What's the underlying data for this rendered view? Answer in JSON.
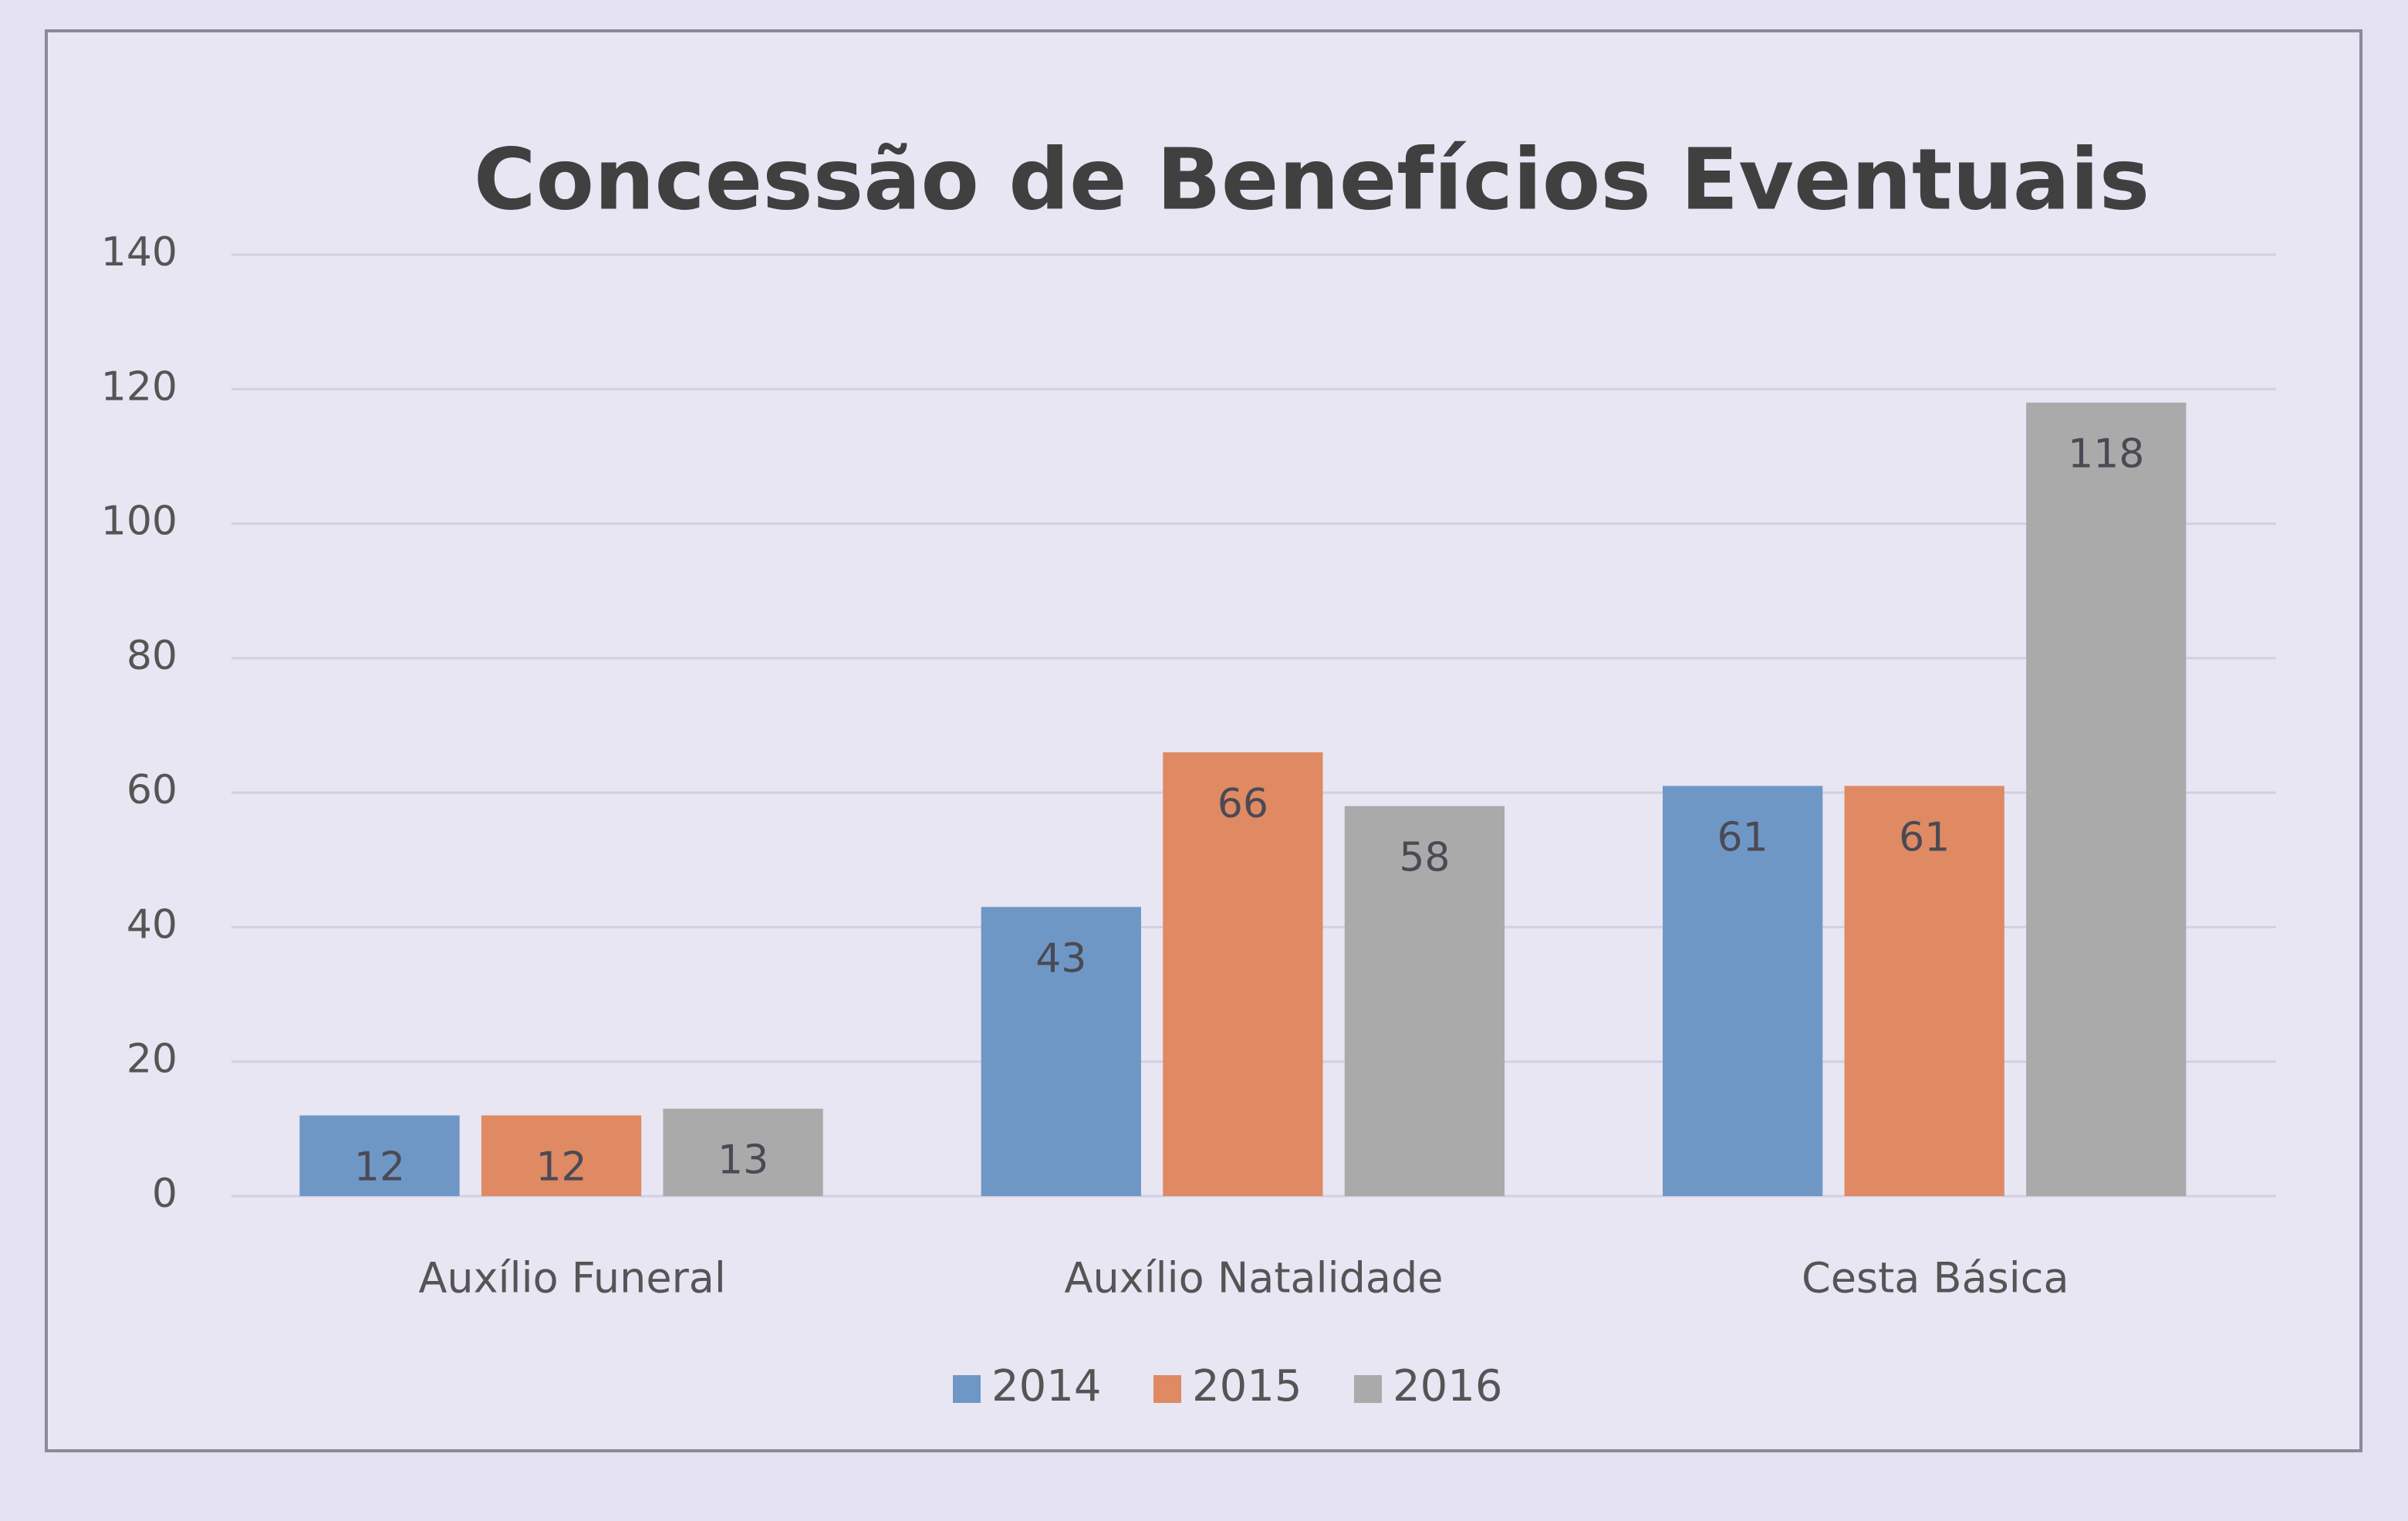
{
  "chart_data": {
    "type": "bar",
    "title": "Concessão de Benefícios Eventuais",
    "categories": [
      "Auxílio Funeral",
      "Auxílio Natalidade",
      "Cesta Básica"
    ],
    "series": [
      {
        "name": "2014",
        "color": "#6f97c6",
        "values": [
          12,
          43,
          61
        ]
      },
      {
        "name": "2015",
        "color": "#df8a63",
        "values": [
          12,
          66,
          61
        ]
      },
      {
        "name": "2016",
        "color": "#aaaaaa",
        "values": [
          13,
          58,
          118
        ]
      }
    ],
    "ylim": [
      0,
      140
    ],
    "yticks": [
      0,
      20,
      40,
      60,
      80,
      100,
      120,
      140
    ],
    "grid": true,
    "legend": "bottom"
  }
}
